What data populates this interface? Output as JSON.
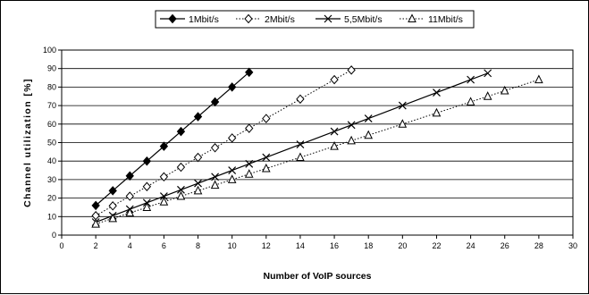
{
  "chart_data": {
    "type": "line",
    "title": "",
    "xlabel": "Number of VoIP sources",
    "ylabel": "Channel utilization [%]",
    "xlim": [
      0,
      30
    ],
    "ylim": [
      0,
      100
    ],
    "xticks": [
      "0",
      "2",
      "4",
      "6",
      "8",
      "10",
      "12",
      "14",
      "16",
      "18",
      "20",
      "22",
      "24",
      "26",
      "28",
      "30"
    ],
    "yticks": [
      "0",
      "10",
      "20",
      "30",
      "40",
      "50",
      "60",
      "70",
      "80",
      "90",
      "100"
    ],
    "grid": "horizontal",
    "legend_position": "top",
    "series": [
      {
        "name": "1Mbit/s",
        "marker": "filled-diamond",
        "line_style": "solid",
        "color": "#000000",
        "x": [
          2,
          3,
          4,
          5,
          6,
          7,
          8,
          9,
          10,
          11
        ],
        "y": [
          16,
          24,
          32,
          40,
          48,
          56,
          64,
          72,
          80,
          88
        ]
      },
      {
        "name": "2Mbit/s",
        "marker": "open-diamond",
        "line_style": "dotted",
        "color": "#000000",
        "x": [
          2,
          3,
          4,
          5,
          6,
          7,
          8,
          9,
          10,
          11,
          12,
          14,
          16,
          17
        ],
        "y": [
          10.5,
          15.8,
          21,
          26.2,
          31.5,
          36.7,
          42,
          47.2,
          52.5,
          57.7,
          63,
          73.5,
          84,
          89.2
        ]
      },
      {
        "name": "5,5Mbit/s",
        "marker": "x",
        "line_style": "solid",
        "color": "#000000",
        "x": [
          2,
          3,
          4,
          5,
          6,
          7,
          8,
          9,
          10,
          11,
          12,
          14,
          16,
          17,
          18,
          20,
          22,
          24,
          25
        ],
        "y": [
          7,
          10.5,
          14,
          17.5,
          21,
          24.5,
          28,
          31.5,
          35,
          38.5,
          42,
          49,
          56,
          59.5,
          63,
          70,
          77,
          84,
          87.5
        ]
      },
      {
        "name": "11Mbit/s",
        "marker": "open-triangle",
        "line_style": "dotted",
        "color": "#000000",
        "x": [
          2,
          3,
          4,
          5,
          6,
          7,
          8,
          9,
          10,
          11,
          12,
          14,
          16,
          17,
          18,
          20,
          22,
          24,
          25,
          26,
          28
        ],
        "y": [
          6,
          9,
          12,
          15,
          18,
          21,
          24,
          27,
          30,
          33,
          36,
          42,
          48,
          51,
          54,
          60,
          66,
          72,
          75,
          78,
          84
        ]
      }
    ]
  }
}
